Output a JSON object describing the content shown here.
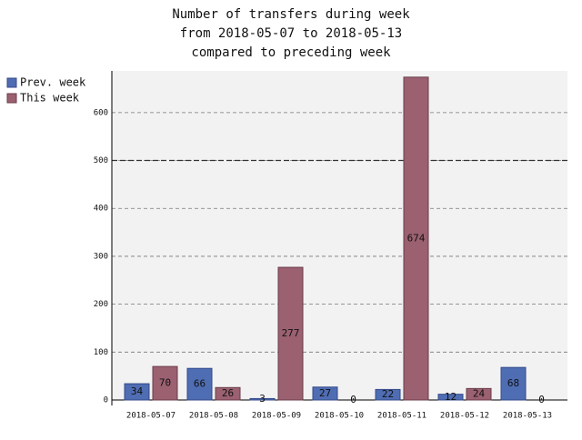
{
  "chart_data": {
    "type": "bar",
    "title": [
      "Number of transfers during week",
      "from 2018-05-07 to 2018-05-13",
      "compared to preceding week"
    ],
    "categories": [
      "2018-05-07",
      "2018-05-08",
      "2018-05-09",
      "2018-05-10",
      "2018-05-11",
      "2018-05-12",
      "2018-05-13"
    ],
    "series": [
      {
        "name": "Prev. week",
        "color": "#4f6db3",
        "values": [
          34,
          66,
          3,
          27,
          22,
          12,
          68
        ]
      },
      {
        "name": "This week",
        "color": "#9b6171",
        "values": [
          70,
          26,
          277,
          0,
          674,
          24,
          0
        ]
      }
    ],
    "ylim": [
      0,
      687
    ],
    "yticks": [
      0,
      100,
      200,
      300,
      400,
      500,
      600
    ],
    "grid": true,
    "reference_line": 500,
    "legend": "top-left"
  }
}
